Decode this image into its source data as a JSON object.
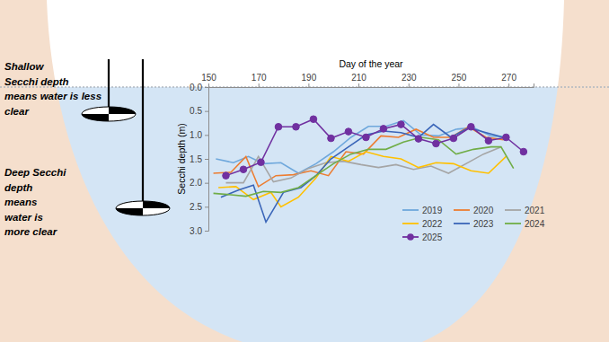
{
  "chart_data": {
    "type": "line",
    "x_label": "Day of the year",
    "y_label": "Secchi depth (m)",
    "xlim": [
      150,
      280
    ],
    "xticks": [
      150,
      170,
      190,
      210,
      230,
      250,
      270
    ],
    "ylim": [
      3,
      0
    ],
    "yticks": [
      {
        "value": 0,
        "label": "0.0"
      },
      {
        "value": 0.5,
        "label": "0.5"
      },
      {
        "value": 1,
        "label": "1.0"
      },
      {
        "value": 1.5,
        "label": "1.5"
      },
      {
        "value": 2,
        "label": "2.0"
      },
      {
        "value": 2.5,
        "label": "2.5"
      },
      {
        "value": 3,
        "label": "3.0"
      }
    ],
    "grid": false,
    "legend": "lower right",
    "annotations": [
      {
        "lines": [
          "Shallow",
          "Secchi depth",
          "means water is less",
          "clear"
        ]
      },
      {
        "lines": [
          "Deep Secchi",
          "depth",
          "means",
          "water is",
          "more clear"
        ]
      }
    ],
    "series": [
      {
        "name": "2019",
        "color": "#6fa8dc",
        "line_style": "solid",
        "x": [
          153,
          160,
          166,
          172,
          179,
          186,
          193,
          200,
          207,
          214,
          221,
          228,
          235,
          242,
          249,
          256,
          263,
          270
        ],
        "values": [
          1.5,
          1.58,
          1.45,
          1.6,
          1.58,
          1.8,
          1.6,
          1.35,
          1.05,
          0.82,
          0.82,
          0.7,
          1.0,
          1.02,
          0.88,
          0.85,
          1.02,
          1.05
        ]
      },
      {
        "name": "2020",
        "color": "#ed7d31",
        "line_style": "solid",
        "x": [
          152,
          159,
          165,
          170,
          177,
          184,
          191,
          198,
          205,
          212,
          219,
          226,
          233,
          240,
          247,
          254,
          261,
          268
        ],
        "values": [
          1.8,
          1.78,
          1.45,
          2.08,
          1.85,
          1.83,
          1.75,
          1.85,
          1.35,
          1.4,
          1.02,
          1.05,
          0.88,
          1.05,
          1.05,
          0.83,
          1.05,
          1.1
        ]
      },
      {
        "name": "2021",
        "color": "#a5a5a5",
        "line_style": "solid",
        "x": [
          157,
          164,
          170,
          176,
          183,
          190,
          197,
          204,
          211,
          218,
          225,
          232,
          239,
          246,
          253,
          260,
          267
        ],
        "values": [
          2.0,
          2.0,
          1.45,
          1.98,
          1.9,
          1.7,
          1.58,
          1.55,
          1.62,
          1.68,
          1.62,
          1.72,
          1.65,
          1.8,
          1.6,
          1.4,
          1.25
        ]
      },
      {
        "name": "2022",
        "color": "#ffc000",
        "line_style": "solid",
        "x": [
          154,
          161,
          168,
          175,
          179,
          186,
          193,
          199,
          206,
          213,
          220,
          227,
          234,
          241,
          248,
          255,
          262,
          269
        ],
        "values": [
          2.1,
          2.08,
          2.35,
          2.2,
          2.5,
          2.3,
          1.9,
          1.45,
          1.55,
          1.35,
          1.45,
          1.5,
          1.68,
          1.58,
          1.6,
          1.75,
          1.8,
          1.45
        ]
      },
      {
        "name": "2023",
        "color": "#3a65b8",
        "line_style": "solid",
        "x": [
          155,
          162,
          168,
          173,
          180,
          187,
          193,
          199,
          206,
          213,
          220,
          227,
          234,
          240,
          247,
          254,
          261,
          268
        ],
        "values": [
          2.3,
          2.15,
          2.05,
          2.82,
          2.2,
          2.1,
          1.85,
          1.5,
          1.25,
          1.0,
          0.92,
          0.95,
          1.05,
          0.78,
          1.05,
          0.85,
          0.95,
          1.05
        ]
      },
      {
        "name": "2024",
        "color": "#70ad47",
        "line_style": "solid",
        "x": [
          152,
          159,
          165,
          172,
          179,
          186,
          193,
          200,
          207,
          214,
          221,
          228,
          235,
          242,
          249,
          256,
          263,
          267,
          272
        ],
        "values": [
          2.22,
          2.25,
          2.28,
          2.18,
          2.2,
          2.1,
          1.85,
          1.6,
          1.4,
          1.3,
          1.3,
          1.15,
          1.05,
          1.1,
          1.4,
          1.3,
          1.25,
          1.25,
          1.7
        ]
      },
      {
        "name": "2025",
        "color": "#7030a0",
        "line_style": "solid",
        "marker": "circle",
        "x": [
          157,
          164,
          171,
          178,
          185,
          192,
          199,
          206,
          213,
          220,
          227,
          234,
          241,
          248,
          255,
          262,
          269,
          276
        ],
        "values": [
          1.85,
          1.72,
          1.57,
          0.83,
          0.83,
          0.67,
          1.07,
          0.93,
          1.05,
          0.87,
          0.78,
          1.08,
          1.18,
          1.07,
          0.83,
          1.12,
          1.05,
          1.35
        ]
      }
    ]
  }
}
